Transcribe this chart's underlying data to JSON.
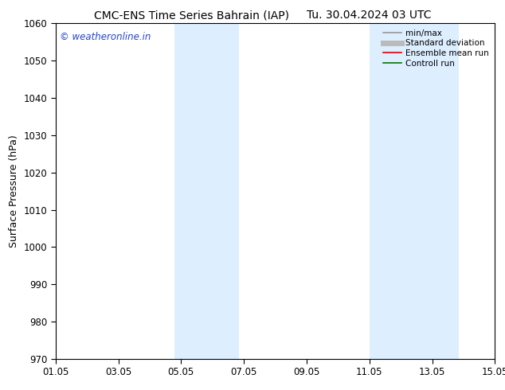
{
  "title_left": "CMC-ENS Time Series Bahrain (IAP)",
  "title_right": "Tu. 30.04.2024 03 UTC",
  "ylabel": "Surface Pressure (hPa)",
  "ylim": [
    970,
    1060
  ],
  "yticks": [
    970,
    980,
    990,
    1000,
    1010,
    1020,
    1030,
    1040,
    1050,
    1060
  ],
  "xtick_labels": [
    "01.05",
    "03.05",
    "05.05",
    "07.05",
    "09.05",
    "11.05",
    "13.05",
    "15.05"
  ],
  "xtick_positions": [
    0,
    2,
    4,
    6,
    8,
    10,
    12,
    14
  ],
  "shaded_regions": [
    {
      "x_start": 3.8,
      "x_end": 5.85,
      "color": "#ddeeff",
      "alpha": 1.0
    },
    {
      "x_start": 10.0,
      "x_end": 12.85,
      "color": "#ddeeff",
      "alpha": 1.0
    }
  ],
  "watermark": "© weatheronline.in",
  "watermark_color": "#2244cc",
  "legend_entries": [
    {
      "label": "min/max",
      "color": "#999999",
      "lw": 1.2
    },
    {
      "label": "Standard deviation",
      "color": "#bbbbbb",
      "lw": 5
    },
    {
      "label": "Ensemble mean run",
      "color": "#dd0000",
      "lw": 1.2
    },
    {
      "label": "Controll run",
      "color": "#007700",
      "lw": 1.2
    }
  ],
  "background_color": "#ffffff",
  "title_fontsize": 10,
  "axis_label_fontsize": 9,
  "tick_fontsize": 8.5,
  "watermark_fontsize": 8.5
}
